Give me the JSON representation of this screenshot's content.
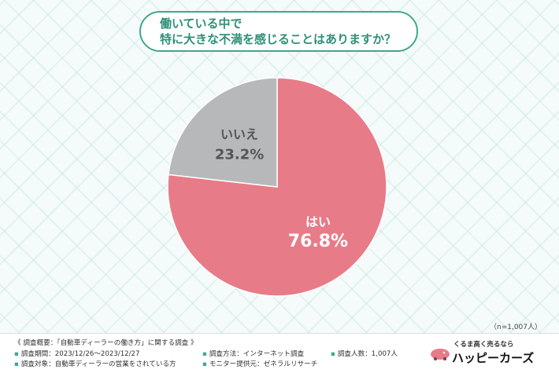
{
  "question": {
    "line1": "働いている中で",
    "line2": "特に大きな不満を感じることはありますか？"
  },
  "chart_data": {
    "type": "pie",
    "title": "働いている中で特に大きな不満を感じることはありますか？",
    "slices": [
      {
        "label": "はい",
        "value": 76.8,
        "display": "76.8%",
        "color": "#e87b88"
      },
      {
        "label": "いいえ",
        "value": 23.2,
        "display": "23.2%",
        "color": "#b7b8ba"
      }
    ]
  },
  "sample_note": "（n=1,007人）",
  "footer": {
    "summary": "《 調査概要：「自動車ディーラーの働き方」に関する調査 》",
    "period": "調査期間：2023/12/26〜2023/12/27",
    "target": "調査対象：自動車ディーラーの営業をされている方",
    "method": "調査方法：インターネット調査",
    "monitor": "モニター提供元：ゼネラルリサーチ",
    "count": "調査人数：1,007人"
  },
  "logo": {
    "tagline": "くるま高く売るなら",
    "name": "ハッピーカーズ",
    "accent_color": "#e87b88"
  }
}
